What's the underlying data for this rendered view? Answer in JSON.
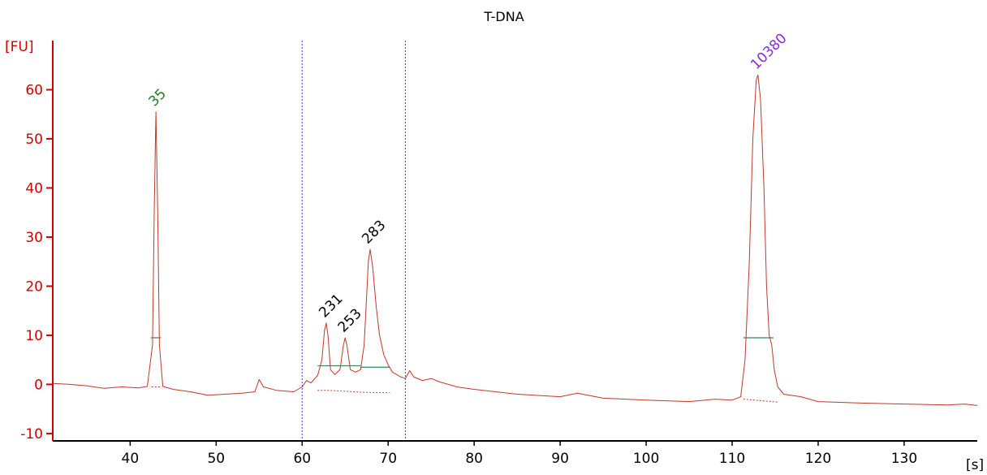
{
  "chart_data": {
    "type": "line",
    "title": "T-DNA",
    "xlabel": "[s]",
    "ylabel": "[FU]",
    "xlim": [
      31,
      138.5
    ],
    "ylim": [
      -11.5,
      70
    ],
    "xticks": [
      40,
      50,
      60,
      70,
      80,
      90,
      100,
      110,
      120,
      130
    ],
    "yticks": [
      -10,
      0,
      10,
      20,
      30,
      40,
      50,
      60
    ],
    "grid": false,
    "legend": "none",
    "colors": {
      "trace": "#c0392b",
      "axis": "#d40000",
      "x_axis": "#000000",
      "region_line": "#3b3bcc",
      "marker_line": "#2e8b57",
      "baseline_dotted": "#c0392b"
    },
    "region_markers": [
      60.0,
      72.0
    ],
    "peaks": [
      {
        "label": "35",
        "x": 43.0,
        "y": 55.5,
        "color": "#1e7d1e"
      },
      {
        "label": "231",
        "x": 62.8,
        "y": 12.5,
        "color": "#000000"
      },
      {
        "label": "253",
        "x": 65.0,
        "y": 9.5,
        "color": "#000000"
      },
      {
        "label": "283",
        "x": 67.8,
        "y": 27.5,
        "color": "#000000"
      },
      {
        "label": "10380",
        "x": 113.0,
        "y": 63.0,
        "color": "#8a2be2"
      }
    ],
    "marker_segments": [
      {
        "x1": 42.4,
        "x2": 43.6,
        "y": 9.5
      },
      {
        "x1": 111.3,
        "x2": 114.8,
        "y": 9.5
      }
    ],
    "smear_segments": [
      {
        "x1": 61.8,
        "x2": 66.8,
        "y": 3.8
      },
      {
        "x1": 66.8,
        "x2": 70.2,
        "y": 3.5
      }
    ],
    "dotted_baselines": [
      [
        [
          42.5,
          -0.5
        ],
        [
          43.6,
          -0.5
        ]
      ],
      [
        [
          61.8,
          -1.2
        ],
        [
          62.8,
          -1.2
        ],
        [
          64.0,
          -1.3
        ],
        [
          66.0,
          -1.5
        ],
        [
          66.8,
          -1.6
        ],
        [
          70.2,
          -1.7
        ]
      ],
      [
        [
          111.3,
          -3.0
        ],
        [
          115.3,
          -3.6
        ]
      ]
    ],
    "x": [
      31,
      33,
      35,
      37,
      39,
      41,
      42,
      42.6,
      42.8,
      43.0,
      43.2,
      43.4,
      43.8,
      45,
      47,
      49,
      51,
      53,
      54.5,
      55,
      55.5,
      57,
      59,
      60,
      60.5,
      61,
      61.8,
      62.3,
      62.6,
      62.8,
      63.0,
      63.3,
      63.8,
      64.4,
      64.8,
      65.0,
      65.2,
      65.6,
      66.2,
      66.8,
      67.2,
      67.5,
      67.7,
      67.9,
      68.2,
      68.6,
      69.0,
      69.5,
      70.0,
      70.5,
      71,
      71.5,
      72,
      72.5,
      73,
      74,
      75,
      76,
      78,
      80,
      85,
      90,
      92,
      95,
      100,
      105,
      108,
      110,
      111,
      111.5,
      112.0,
      112.4,
      112.8,
      113.0,
      113.3,
      113.7,
      114.0,
      114.3,
      114.6,
      114.9,
      115.3,
      116,
      118,
      120,
      125,
      130,
      135,
      137,
      138.5
    ],
    "y": [
      0.2,
      0,
      -0.3,
      -0.8,
      -0.5,
      -0.7,
      -0.4,
      8,
      35,
      55.5,
      35,
      8,
      -0.4,
      -1.0,
      -1.5,
      -2.2,
      -2.0,
      -1.8,
      -1.5,
      1.0,
      -0.5,
      -1.2,
      -1.5,
      -0.5,
      0.8,
      0.3,
      1.8,
      5,
      11,
      12.5,
      10,
      3,
      2,
      3,
      8,
      9.5,
      8,
      3,
      2.5,
      3,
      8,
      18,
      25,
      27.5,
      24,
      16,
      10,
      6,
      4,
      2.5,
      2.0,
      1.5,
      1.2,
      2.8,
      1.5,
      0.8,
      1.2,
      0.5,
      -0.5,
      -1.0,
      -2.0,
      -2.5,
      -1.8,
      -2.8,
      -3.2,
      -3.5,
      -3.0,
      -3.2,
      -2.5,
      5,
      25,
      50,
      62,
      63,
      58,
      40,
      20,
      10,
      8,
      3,
      -0.5,
      -2.0,
      -2.5,
      -3.5,
      -3.8,
      -4.0,
      -4.2,
      -4.0,
      -4.3
    ]
  }
}
